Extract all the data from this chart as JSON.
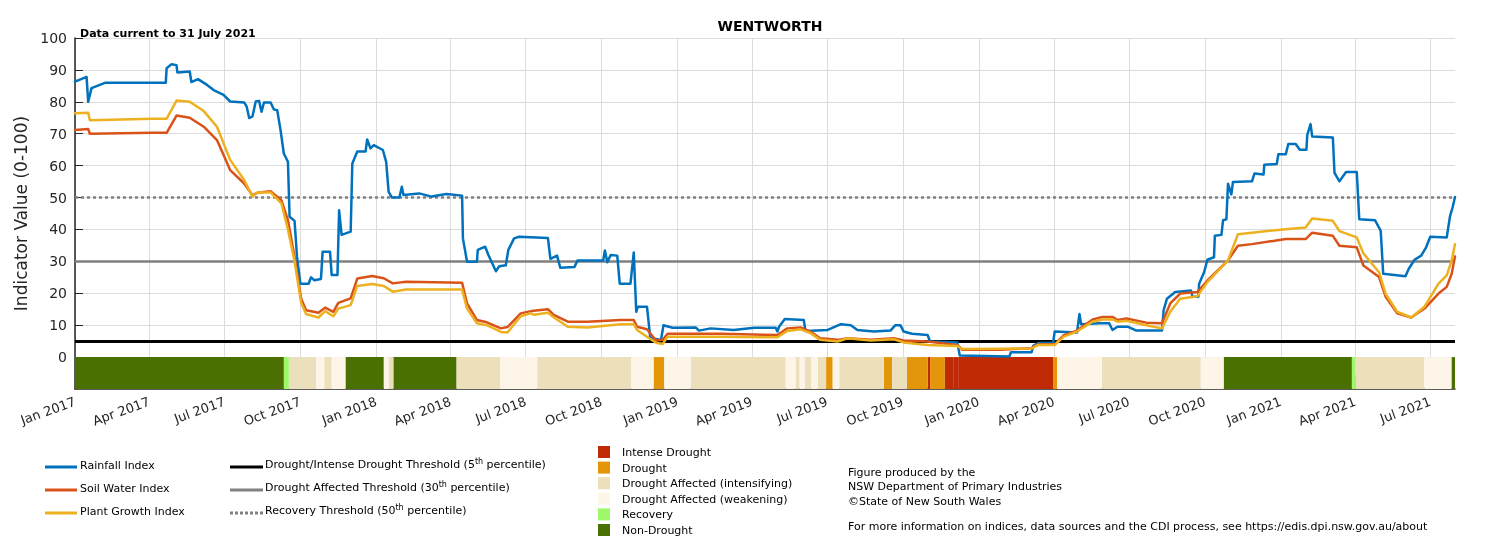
{
  "chart_data": {
    "type": "line",
    "title": "WENTWORTH",
    "subtitle": "Data current to 31 July 2021",
    "ylabel": "Indicator Value (0-100)",
    "xlim": [
      "2017-01-01",
      "2021-07-31"
    ],
    "xticks": [
      {
        "value": "2017-01-01",
        "label": "Jan 2017"
      },
      {
        "value": "2017-04-01",
        "label": "Apr 2017"
      },
      {
        "value": "2017-07-01",
        "label": "Jul 2017"
      },
      {
        "value": "2017-10-01",
        "label": "Oct 2017"
      },
      {
        "value": "2018-01-01",
        "label": "Jan 2018"
      },
      {
        "value": "2018-04-01",
        "label": "Apr 2018"
      },
      {
        "value": "2018-07-01",
        "label": "Jul 2018"
      },
      {
        "value": "2018-10-01",
        "label": "Oct 2018"
      },
      {
        "value": "2019-01-01",
        "label": "Jan 2019"
      },
      {
        "value": "2019-04-01",
        "label": "Apr 2019"
      },
      {
        "value": "2019-07-01",
        "label": "Jul 2019"
      },
      {
        "value": "2019-10-01",
        "label": "Oct 2019"
      },
      {
        "value": "2020-01-01",
        "label": "Jan 2020"
      },
      {
        "value": "2020-04-01",
        "label": "Apr 2020"
      },
      {
        "value": "2020-07-01",
        "label": "Jul 2020"
      },
      {
        "value": "2020-10-01",
        "label": "Oct 2020"
      },
      {
        "value": "2021-01-01",
        "label": "Jan 2021"
      },
      {
        "value": "2021-04-01",
        "label": "Apr 2021"
      },
      {
        "value": "2021-07-01",
        "label": "Jul 2021"
      }
    ],
    "ylim": [
      -10,
      100
    ],
    "yticks": [
      0,
      10,
      20,
      30,
      40,
      50,
      60,
      70,
      80,
      90,
      100
    ],
    "grid": true,
    "legend": "bottom",
    "marker": "none",
    "x": [
      "2017-01-01",
      "2017-01-17",
      "2017-01-19",
      "2017-04-05",
      "2017-04-22",
      "2017-05-04",
      "2017-05-20",
      "2017-06-06",
      "2017-06-22",
      "2017-07-08",
      "2017-07-25",
      "2017-08-04",
      "2017-08-10",
      "2017-08-26",
      "2017-09-08",
      "2017-09-16",
      "2017-09-24",
      "2017-10-02",
      "2017-10-08",
      "2017-10-23",
      "2017-10-31",
      "2017-11-10",
      "2017-11-16",
      "2017-12-01",
      "2017-12-09",
      "2017-12-27",
      "2018-01-10",
      "2018-01-21",
      "2018-02-06",
      "2018-04-15",
      "2018-04-21",
      "2018-05-03",
      "2018-05-15",
      "2018-06-01",
      "2018-06-09",
      "2018-06-25",
      "2018-07-07",
      "2018-07-11",
      "2018-07-28",
      "2018-08-04",
      "2018-08-21",
      "2018-09-14",
      "2018-10-24",
      "2018-11-09",
      "2018-11-13",
      "2018-11-25",
      "2018-12-06",
      "2018-12-14",
      "2018-12-20",
      "2019-02-22",
      "2019-05-02",
      "2019-05-14",
      "2019-05-30",
      "2019-06-11",
      "2019-06-23",
      "2019-07-14",
      "2019-07-26",
      "2019-08-23",
      "2019-09-20",
      "2019-10-02",
      "2019-10-31",
      "2019-12-06",
      "2019-12-12",
      "2020-01-27",
      "2020-03-05",
      "2020-03-13",
      "2020-04-02",
      "2020-04-13",
      "2020-04-29",
      "2020-05-18",
      "2020-05-30",
      "2020-06-11",
      "2020-06-17",
      "2020-06-28",
      "2020-07-22",
      "2020-08-10",
      "2020-08-20",
      "2020-09-01",
      "2020-09-22",
      "2020-10-04",
      "2020-10-29",
      "2020-11-10",
      "2020-11-27",
      "2021-01-07",
      "2021-01-31",
      "2021-02-08",
      "2021-03-05",
      "2021-03-13",
      "2021-04-03",
      "2021-04-11",
      "2021-04-30",
      "2021-05-08",
      "2021-05-22",
      "2021-06-08",
      "2021-06-24",
      "2021-07-11",
      "2021-07-21",
      "2021-07-27",
      "2021-07-31"
    ],
    "series": [
      {
        "name": "Rainfall Index",
        "color": "#0072bd",
        "x": [
          "2017-01-01",
          "2017-01-15",
          "2017-01-17",
          "2017-01-21",
          "2017-02-07",
          "2017-04-21",
          "2017-04-22",
          "2017-04-28",
          "2017-05-04",
          "2017-05-05",
          "2017-05-20",
          "2017-05-22",
          "2017-05-30",
          "2017-06-10",
          "2017-06-18",
          "2017-06-30",
          "2017-07-08",
          "2017-07-25",
          "2017-07-28",
          "2017-07-31",
          "2017-08-04",
          "2017-08-08",
          "2017-08-12",
          "2017-08-15",
          "2017-08-18",
          "2017-08-26",
          "2017-08-30",
          "2017-09-03",
          "2017-09-07",
          "2017-09-11",
          "2017-09-16",
          "2017-09-18",
          "2017-09-24",
          "2017-09-27",
          "2017-10-01",
          "2017-10-11",
          "2017-10-14",
          "2017-10-18",
          "2017-10-26",
          "2017-10-28",
          "2017-11-06",
          "2017-11-08",
          "2017-11-15",
          "2017-11-17",
          "2017-11-20",
          "2017-12-01",
          "2017-12-03",
          "2017-12-09",
          "2017-12-19",
          "2017-12-21",
          "2017-12-25",
          "2017-12-29",
          "2018-01-09",
          "2018-01-13",
          "2018-01-16",
          "2018-01-20",
          "2018-01-29",
          "2018-02-01",
          "2018-02-03",
          "2018-02-22",
          "2018-03-09",
          "2018-03-27",
          "2018-04-15",
          "2018-04-16",
          "2018-04-21",
          "2018-05-03",
          "2018-05-04",
          "2018-05-13",
          "2018-05-17",
          "2018-05-26",
          "2018-05-30",
          "2018-06-07",
          "2018-06-10",
          "2018-06-17",
          "2018-06-23",
          "2018-07-28",
          "2018-07-31",
          "2018-08-08",
          "2018-08-12",
          "2018-08-29",
          "2018-09-02",
          "2018-10-03",
          "2018-10-05",
          "2018-10-08",
          "2018-10-12",
          "2018-10-20",
          "2018-10-23",
          "2018-11-05",
          "2018-11-09",
          "2018-11-12",
          "2018-11-14",
          "2018-11-25",
          "2018-11-29",
          "2018-12-12",
          "2018-12-15",
          "2018-12-26",
          "2019-01-23",
          "2019-01-27",
          "2019-02-10",
          "2019-03-10",
          "2019-04-04",
          "2019-04-30",
          "2019-05-02",
          "2019-05-04",
          "2019-05-11",
          "2019-06-03",
          "2019-06-05",
          "2019-07-02",
          "2019-07-18",
          "2019-07-30",
          "2019-08-07",
          "2019-08-27",
          "2019-09-16",
          "2019-09-22",
          "2019-09-28",
          "2019-10-02",
          "2019-10-12",
          "2019-10-31",
          "2019-11-03",
          "2019-12-06",
          "2019-12-09",
          "2020-02-07",
          "2020-02-09",
          "2020-03-05",
          "2020-03-07",
          "2020-03-13",
          "2020-03-31",
          "2020-04-02",
          "2020-04-29",
          "2020-05-02",
          "2020-05-04",
          "2020-05-26",
          "2020-06-07",
          "2020-06-11",
          "2020-06-17",
          "2020-06-30",
          "2020-07-10",
          "2020-08-10",
          "2020-08-12",
          "2020-08-16",
          "2020-08-26",
          "2020-09-14",
          "2020-09-16",
          "2020-09-23",
          "2020-09-24",
          "2020-09-30",
          "2020-10-04",
          "2020-10-12",
          "2020-10-13",
          "2020-10-21",
          "2020-10-23",
          "2020-10-27",
          "2020-10-29",
          "2020-11-02",
          "2020-11-04",
          "2020-11-27",
          "2020-11-30",
          "2020-12-11",
          "2020-12-12",
          "2020-12-27",
          "2020-12-29",
          "2021-01-07",
          "2021-01-10",
          "2021-01-19",
          "2021-01-24",
          "2021-02-01",
          "2021-02-02",
          "2021-02-06",
          "2021-02-08",
          "2021-03-05",
          "2021-03-07",
          "2021-03-13",
          "2021-03-21",
          "2021-04-03",
          "2021-04-06",
          "2021-04-25",
          "2021-05-02",
          "2021-05-05",
          "2021-06-01",
          "2021-06-05",
          "2021-06-12",
          "2021-06-20",
          "2021-06-26",
          "2021-07-01",
          "2021-07-21",
          "2021-07-25",
          "2021-07-28",
          "2021-07-31"
        ],
        "values": [
          86.3,
          87.8,
          80.0,
          84.3,
          86.0,
          86.0,
          90.5,
          91.8,
          91.5,
          89.2,
          89.5,
          86.2,
          87.1,
          85.3,
          83.7,
          82.2,
          80.1,
          79.8,
          78.5,
          74.9,
          75.4,
          80.1,
          80.3,
          76.9,
          79.8,
          79.8,
          77.6,
          77.4,
          71.2,
          63.8,
          61.2,
          44.0,
          42.7,
          31.4,
          23.0,
          23.0,
          25.0,
          24.1,
          24.5,
          33.0,
          33.0,
          25.7,
          25.7,
          46.0,
          38.3,
          39.3,
          60.7,
          64.4,
          64.4,
          68.2,
          65.4,
          66.4,
          64.9,
          61.2,
          51.8,
          50.0,
          50.0,
          53.4,
          50.8,
          51.3,
          50.3,
          51.1,
          50.6,
          37.2,
          29.9,
          29.9,
          33.6,
          34.6,
          31.9,
          26.9,
          28.5,
          28.8,
          33.6,
          37.2,
          37.7,
          37.3,
          30.8,
          31.8,
          28.0,
          28.2,
          30.3,
          30.3,
          33.4,
          29.7,
          32.0,
          31.8,
          23.0,
          23.0,
          32.8,
          14.2,
          15.8,
          15.8,
          6.0,
          5.4,
          10.0,
          9.2,
          9.3,
          8.3,
          9.0,
          8.5,
          9.2,
          9.2,
          8.0,
          9.5,
          11.9,
          11.6,
          8.2,
          8.5,
          10.3,
          10.0,
          8.5,
          8.0,
          8.3,
          10.0,
          10.0,
          8.0,
          7.3,
          6.9,
          4.9,
          4.6,
          0.5,
          0.2,
          1.5,
          1.5,
          3.5,
          4.4,
          4.4,
          8.0,
          7.7,
          13.5,
          10.3,
          10.6,
          10.6,
          8.5,
          9.5,
          9.5,
          8.3,
          8.3,
          14.7,
          18.3,
          20.4,
          20.9,
          18.9,
          18.9,
          23.0,
          26.6,
          30.5,
          31.3,
          38.0,
          38.3,
          42.9,
          43.2,
          54.3,
          51.0,
          54.9,
          55.1,
          57.5,
          57.2,
          60.3,
          60.5,
          63.6,
          63.6,
          66.8,
          66.8,
          65.0,
          65.0,
          69.6,
          73.0,
          69.1,
          68.8,
          57.7,
          55.1,
          58.0,
          58.0,
          43.2,
          42.9,
          39.6,
          26.1,
          25.3,
          27.7,
          30.5,
          31.8,
          34.4,
          37.7,
          37.5,
          44.2,
          46.8,
          50.2
        ]
      },
      {
        "name": "Soil Water Index",
        "color": "#d95319",
        "values": [
          71.2,
          71.5,
          70.0,
          70.3,
          70.3,
          75.7,
          75.0,
          72.2,
          68.0,
          58.6,
          54.4,
          50.7,
          51.5,
          52.0,
          49.2,
          42.9,
          31.4,
          18.3,
          14.7,
          13.9,
          15.5,
          14.2,
          17.0,
          18.4,
          24.6,
          25.4,
          24.7,
          23.1,
          23.6,
          23.3,
          16.8,
          11.6,
          10.9,
          9.0,
          9.4,
          13.7,
          14.4,
          14.5,
          15.0,
          13.2,
          11.1,
          11.1,
          11.6,
          11.6,
          9.5,
          8.7,
          5.2,
          5.4,
          7.3,
          7.3,
          6.9,
          9.0,
          9.3,
          8.0,
          5.9,
          5.4,
          5.9,
          5.4,
          5.9,
          5.2,
          4.9,
          3.8,
          2.3,
          2.3,
          2.8,
          4.0,
          4.0,
          6.9,
          8.3,
          11.8,
          12.6,
          12.6,
          11.6,
          12.1,
          10.8,
          10.6,
          16.8,
          19.9,
          20.4,
          24.0,
          30.3,
          34.9,
          35.4,
          37.0,
          37.0,
          39.0,
          38.0,
          34.9,
          34.4,
          28.7,
          25.1,
          18.9,
          13.7,
          12.4,
          15.2,
          19.9,
          22.0,
          26.1,
          31.5
        ]
      },
      {
        "name": "Plant Growth Index",
        "color": "#edb120",
        "values": [
          76.4,
          76.6,
          74.2,
          74.7,
          74.7,
          80.4,
          80.0,
          77.1,
          72.2,
          61.8,
          55.5,
          50.3,
          51.6,
          51.6,
          48.2,
          40.0,
          30.0,
          17.0,
          13.5,
          12.4,
          14.4,
          12.8,
          15.2,
          16.3,
          22.3,
          22.9,
          22.3,
          20.5,
          21.2,
          21.2,
          15.2,
          10.6,
          10.0,
          7.9,
          7.7,
          12.8,
          13.7,
          13.3,
          13.9,
          12.5,
          9.5,
          9.3,
          10.3,
          10.3,
          8.5,
          6.4,
          4.5,
          4.1,
          6.4,
          6.4,
          6.2,
          8.2,
          8.7,
          7.5,
          5.4,
          4.9,
          5.9,
          5.2,
          5.6,
          4.6,
          3.8,
          3.5,
          2.5,
          2.6,
          2.7,
          3.8,
          3.8,
          6.4,
          8.0,
          11.1,
          11.8,
          11.8,
          11.1,
          11.4,
          10.0,
          9.0,
          14.2,
          18.3,
          19.1,
          23.5,
          30.3,
          38.5,
          39.0,
          40.1,
          40.6,
          43.4,
          42.7,
          39.5,
          37.5,
          32.5,
          26.6,
          19.8,
          14.2,
          12.4,
          15.8,
          23.0,
          25.6,
          30.3,
          35.4
        ]
      }
    ],
    "ref_lines": [
      {
        "axis": "y",
        "value": 5,
        "label": "Drought/Intense Drought Threshold (5$^{th}$ percentile)",
        "color": "#000000",
        "line_style": "solid"
      },
      {
        "axis": "y",
        "value": 30,
        "label": "Drought Affected Threshold (30$^{th}$ percentile)",
        "color": "#808080",
        "line_style": "solid"
      },
      {
        "axis": "y",
        "value": 50,
        "label": "Recovery Threshold (50$^{th}$ percentile)",
        "color": "#808080",
        "line_style": "dotted"
      }
    ],
    "bands": [
      {
        "axis": "x",
        "from": "2019-12-01",
        "to": "2019-12-07",
        "label": "Intense Drought",
        "color": "#bf2a05"
      },
      {
        "axis": "x",
        "from": "2019-10-31",
        "to": "2019-11-03",
        "color": "#bf2a05"
      },
      {
        "axis": "x",
        "from": "2019-11-21",
        "to": "2019-12-01",
        "color": "#bf2a05"
      },
      {
        "axis": "x",
        "from": "2019-12-07",
        "to": "2020-03-31",
        "color": "#bf2a05"
      },
      {
        "axis": "x",
        "from": "2018-12-03",
        "to": "2018-12-16",
        "label": "Drought",
        "color": "#e4960a"
      },
      {
        "axis": "x",
        "from": "2019-06-30",
        "to": "2019-07-08",
        "color": "#e4960a"
      },
      {
        "axis": "x",
        "from": "2019-09-08",
        "to": "2019-09-18",
        "color": "#e4960a"
      },
      {
        "axis": "x",
        "from": "2019-10-06",
        "to": "2019-10-31",
        "color": "#e4960a"
      },
      {
        "axis": "x",
        "from": "2019-11-03",
        "to": "2019-11-21",
        "color": "#e4960a"
      },
      {
        "axis": "x",
        "from": "2020-03-31",
        "to": "2020-04-05",
        "color": "#e4960a"
      },
      {
        "axis": "x",
        "from": "2017-09-17",
        "to": "2017-10-20",
        "label": "Drought Affected (intensifying)",
        "color": "#ece0bc"
      },
      {
        "axis": "x",
        "from": "2017-10-30",
        "to": "2017-11-08",
        "color": "#ece0bc"
      },
      {
        "axis": "x",
        "from": "2018-01-16",
        "to": "2018-01-22",
        "color": "#ece0bc"
      },
      {
        "axis": "x",
        "from": "2018-04-08",
        "to": "2018-05-31",
        "color": "#ece0bc"
      },
      {
        "axis": "x",
        "from": "2018-07-15",
        "to": "2018-11-06",
        "color": "#ece0bc"
      },
      {
        "axis": "x",
        "from": "2019-01-17",
        "to": "2019-05-12",
        "color": "#ece0bc"
      },
      {
        "axis": "x",
        "from": "2019-05-24",
        "to": "2019-05-29",
        "color": "#ece0bc"
      },
      {
        "axis": "x",
        "from": "2019-06-04",
        "to": "2019-06-12",
        "color": "#ece0bc"
      },
      {
        "axis": "x",
        "from": "2019-06-20",
        "to": "2019-06-30",
        "color": "#ece0bc"
      },
      {
        "axis": "x",
        "from": "2019-07-16",
        "to": "2019-09-08",
        "color": "#ece0bc"
      },
      {
        "axis": "x",
        "from": "2019-09-18",
        "to": "2019-10-06",
        "color": "#ece0bc"
      },
      {
        "axis": "x",
        "from": "2020-05-29",
        "to": "2020-09-26",
        "color": "#ece0bc"
      },
      {
        "axis": "x",
        "from": "2021-04-01",
        "to": "2021-06-24",
        "color": "#ece0bc"
      },
      {
        "axis": "x",
        "from": "2017-10-20",
        "to": "2017-10-30",
        "label": "Drought Affected (weakening)",
        "color": "#fdf5e8"
      },
      {
        "axis": "x",
        "from": "2017-11-08",
        "to": "2017-11-25",
        "color": "#fdf5e8"
      },
      {
        "axis": "x",
        "from": "2018-01-10",
        "to": "2018-01-16",
        "color": "#fdf5e8"
      },
      {
        "axis": "x",
        "from": "2018-05-31",
        "to": "2018-07-15",
        "color": "#fdf5e8"
      },
      {
        "axis": "x",
        "from": "2018-11-06",
        "to": "2018-12-03",
        "color": "#fdf5e8"
      },
      {
        "axis": "x",
        "from": "2018-12-16",
        "to": "2019-01-17",
        "color": "#fdf5e8"
      },
      {
        "axis": "x",
        "from": "2019-05-12",
        "to": "2019-05-24",
        "color": "#fdf5e8"
      },
      {
        "axis": "x",
        "from": "2019-05-29",
        "to": "2019-06-04",
        "color": "#fdf5e8"
      },
      {
        "axis": "x",
        "from": "2019-06-12",
        "to": "2019-06-20",
        "color": "#fdf5e8"
      },
      {
        "axis": "x",
        "from": "2019-07-08",
        "to": "2019-07-16",
        "color": "#fdf5e8"
      },
      {
        "axis": "x",
        "from": "2020-04-05",
        "to": "2020-05-29",
        "color": "#fdf5e8"
      },
      {
        "axis": "x",
        "from": "2020-09-26",
        "to": "2020-10-24",
        "color": "#fdf5e8"
      },
      {
        "axis": "x",
        "from": "2021-06-24",
        "to": "2021-07-27",
        "color": "#fdf5e8"
      },
      {
        "axis": "x",
        "from": "2017-09-11",
        "to": "2017-09-17",
        "label": "Recovery",
        "color": "#9ff76a"
      },
      {
        "axis": "x",
        "from": "2021-03-28",
        "to": "2021-04-01",
        "color": "#9ff76a"
      },
      {
        "axis": "x",
        "from": "2017-01-01",
        "to": "2017-09-11",
        "label": "Non-Drought",
        "color": "#4b7002"
      },
      {
        "axis": "x",
        "from": "2017-11-25",
        "to": "2018-01-10",
        "color": "#4b7002"
      },
      {
        "axis": "x",
        "from": "2018-01-22",
        "to": "2018-04-08",
        "color": "#4b7002"
      },
      {
        "axis": "x",
        "from": "2020-10-24",
        "to": "2021-03-28",
        "color": "#4b7002"
      },
      {
        "axis": "x",
        "from": "2021-07-27",
        "to": "2021-07-31",
        "color": "#4b7002"
      }
    ],
    "annotations": [
      "Figure produced by the\nNSW Department of Primary Industries\n©State of New South Wales",
      "For more information on indices, data sources and the CDI process, see https://edis.dpi.nsw.gov.au/about"
    ]
  }
}
